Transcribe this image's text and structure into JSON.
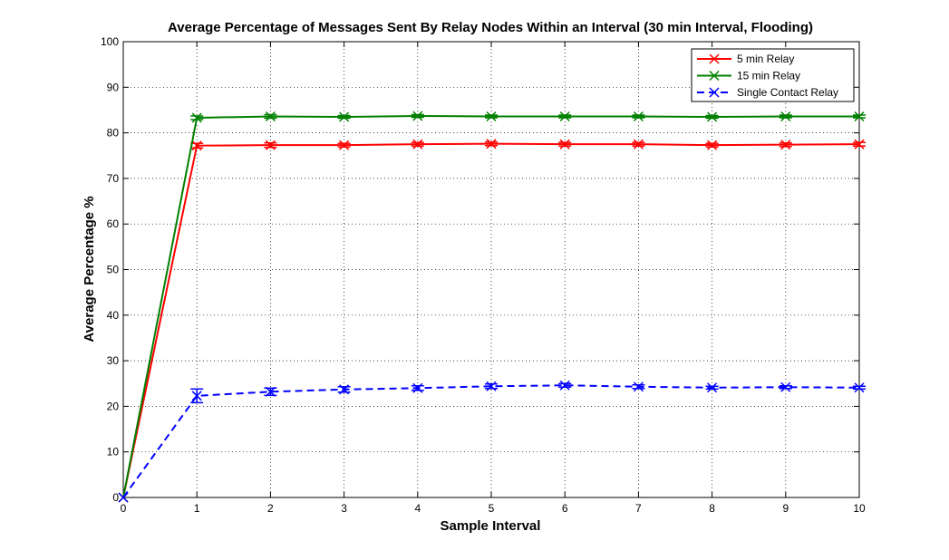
{
  "chart_data": {
    "type": "line",
    "title": "Average Percentage of Messages Sent By Relay Nodes Within an Interval (30 min Interval, Flooding)",
    "xlabel": "Sample Interval",
    "ylabel": "Average Percentage %",
    "xlim": [
      0,
      10
    ],
    "ylim": [
      0,
      100
    ],
    "xticks": [
      0,
      1,
      2,
      3,
      4,
      5,
      6,
      7,
      8,
      9,
      10
    ],
    "yticks": [
      0,
      10,
      20,
      30,
      40,
      50,
      60,
      70,
      80,
      90,
      100
    ],
    "grid": true,
    "legend_position": "top-right",
    "x": [
      0,
      1,
      2,
      3,
      4,
      5,
      6,
      7,
      8,
      9,
      10
    ],
    "series": [
      {
        "name": "5 min Relay",
        "color": "#ff0000",
        "dashed": false,
        "values": [
          0,
          77.2,
          77.3,
          77.3,
          77.5,
          77.6,
          77.5,
          77.5,
          77.3,
          77.4,
          77.5
        ],
        "errors": [
          0,
          0.5,
          0.5,
          0.4,
          0.4,
          0.4,
          0.4,
          0.4,
          0.4,
          0.4,
          0.4
        ]
      },
      {
        "name": "15 min Relay",
        "color": "#008000",
        "dashed": false,
        "values": [
          0,
          83.3,
          83.6,
          83.5,
          83.7,
          83.6,
          83.6,
          83.6,
          83.5,
          83.6,
          83.6
        ],
        "errors": [
          0,
          0.4,
          0.4,
          0.3,
          0.3,
          0.3,
          0.3,
          0.3,
          0.3,
          0.3,
          0.3
        ]
      },
      {
        "name": "Single Contact Relay",
        "color": "#0000ff",
        "dashed": true,
        "values": [
          0,
          22.3,
          23.2,
          23.7,
          24.0,
          24.4,
          24.6,
          24.3,
          24.1,
          24.2,
          24.1
        ],
        "errors": [
          0,
          1.5,
          0.8,
          0.6,
          0.5,
          0.5,
          0.4,
          0.4,
          0.3,
          0.3,
          0.3
        ]
      }
    ]
  }
}
